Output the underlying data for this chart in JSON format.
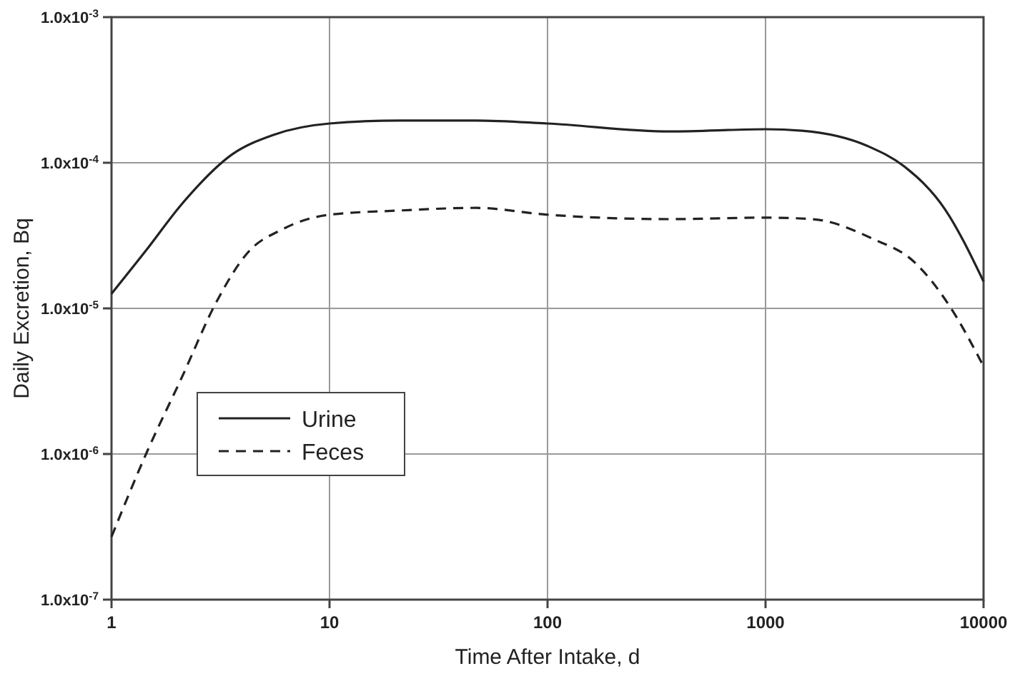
{
  "chart_data": {
    "type": "line",
    "xlabel": "Time After Intake, d",
    "ylabel": "Daily Excretion, Bq",
    "log": "xy",
    "grid": true,
    "legend": "left",
    "xlim": [
      1,
      10000
    ],
    "xticks": [
      1,
      10,
      100,
      1000,
      10000
    ],
    "ylim": [
      1e-07,
      0.001
    ],
    "yticks": [
      {
        "value": 1e-07,
        "label": "1.0x10$^{-7}$"
      },
      {
        "value": 1e-06,
        "label": "1.0x10$^{-6}$"
      },
      {
        "value": 1e-05,
        "label": "1.0x10$^{-5}$"
      },
      {
        "value": 0.0001,
        "label": "1.0x10$^{-4}$"
      },
      {
        "value": 0.001,
        "label": "1.0x10$^{-3}$"
      }
    ],
    "series": [
      {
        "name": "Urine",
        "color": "#222222",
        "line_style": "solid",
        "x": [
          1,
          1.44,
          2.1,
          3.6,
          5.5,
          10,
          21,
          47,
          100,
          365,
          1000,
          1470,
          2950,
          4300,
          6650,
          10000
        ],
        "values": [
          1.26e-05,
          2.5e-05,
          5.2e-05,
          0.000115,
          0.000155,
          0.000186,
          0.000195,
          0.000195,
          0.000186,
          0.000164,
          0.00017,
          0.000166,
          0.00013,
          9.5e-05,
          4.8e-05,
          1.53e-05
        ]
      },
      {
        "name": "Feces",
        "color": "#222222",
        "line_style": "dashed",
        "x": [
          1,
          1.44,
          2.1,
          3.05,
          4.2,
          6.1,
          10,
          21,
          47,
          100,
          365,
          1000,
          1640,
          3110,
          4780,
          6950,
          10000
        ],
        "values": [
          2.7e-07,
          1e-06,
          3.35e-06,
          1.13e-05,
          2.4e-05,
          3.5e-05,
          4.4e-05,
          4.7e-05,
          4.9e-05,
          4.4e-05,
          4.1e-05,
          4.2e-05,
          4.1e-05,
          3e-05,
          2.1e-05,
          1.05e-05,
          4e-06
        ]
      }
    ]
  }
}
